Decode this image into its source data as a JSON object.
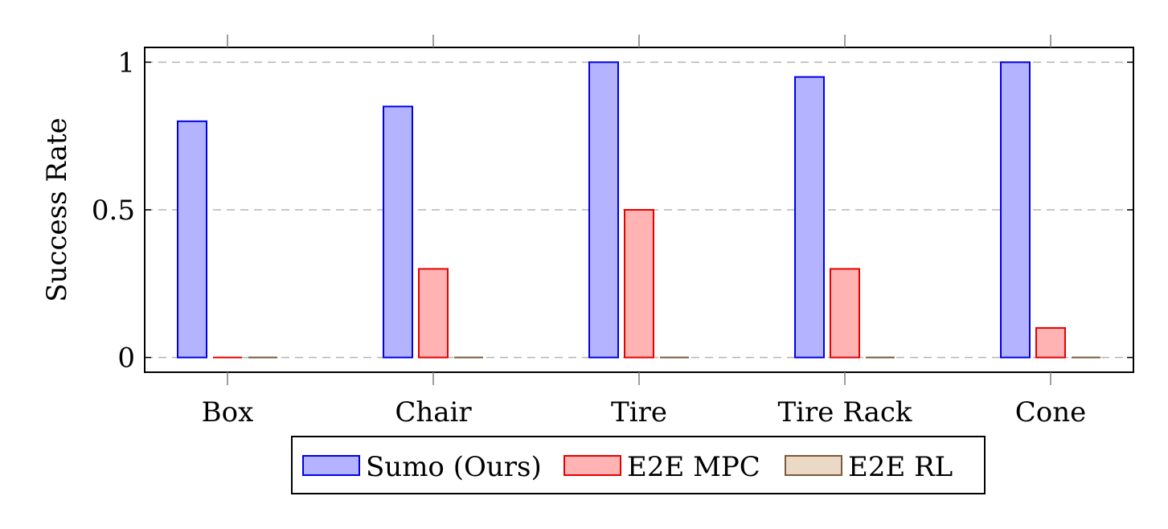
{
  "chart_data": {
    "type": "bar",
    "categories": [
      "Box",
      "Chair",
      "Tire",
      "Tire Rack",
      "Cone"
    ],
    "series": [
      {
        "name": "Sumo (Ours)",
        "values": [
          0.8,
          0.85,
          1.0,
          0.95,
          1.0
        ],
        "fill": "#b3b3ff",
        "stroke": "#0000e6"
      },
      {
        "name": "E2E MPC",
        "values": [
          0.0,
          0.3,
          0.5,
          0.3,
          0.1
        ],
        "fill": "#ffb3b3",
        "stroke": "#e60000"
      },
      {
        "name": "E2E RL",
        "values": [
          0.0,
          0.0,
          0.0,
          0.0,
          0.0
        ],
        "fill": "#ebd9c6",
        "stroke": "#7a5a3a"
      }
    ],
    "ylabel": "Success Rate",
    "xlabel": "",
    "ylim": [
      -0.05,
      1.05
    ],
    "yticks": [
      0,
      0.5,
      1
    ],
    "ytick_labels": [
      "0",
      "0.5",
      "1"
    ],
    "grid": "horizontal-dashed",
    "legend_position": "bottom-center"
  }
}
